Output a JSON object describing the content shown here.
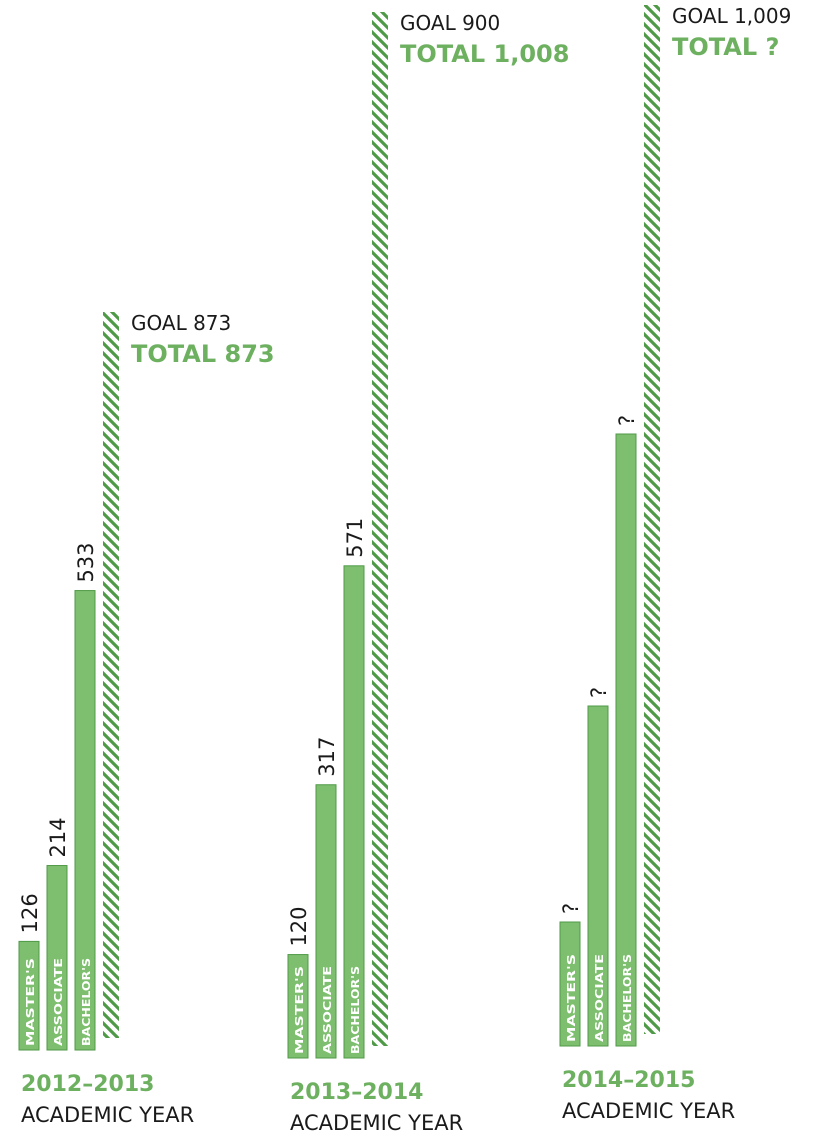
{
  "chart_data": {
    "type": "bar",
    "subtitle": "ACADEMIC YEAR",
    "bar_categories": [
      "MASTER'S",
      "ASSOCIATE",
      "BACHELOR'S"
    ],
    "groups": [
      {
        "year": "2012–2013",
        "values": [
          126,
          214,
          533
        ],
        "value_labels": [
          "126",
          "214",
          "533"
        ],
        "goal": 873,
        "goal_label": "GOAL 873",
        "total_label": "TOTAL 873"
      },
      {
        "year": "2013–2014",
        "values": [
          120,
          317,
          571
        ],
        "value_labels": [
          "120",
          "317",
          "571"
        ],
        "goal": 900,
        "goal_label": "GOAL 900",
        "total_label": "TOTAL 1,008"
      },
      {
        "year": "2014–2015",
        "values": [
          null,
          null,
          null
        ],
        "value_labels": [
          "?",
          "?",
          "?"
        ],
        "goal": 1009,
        "goal_label": "GOAL 1,009",
        "total_label": "TOTAL ?"
      }
    ],
    "colors": {
      "bar": "#7dbf6e",
      "bar_edge": "#4f9a47",
      "accent_text": "#6db060",
      "hatch": "#4f9a47",
      "text": "#1a1a1a",
      "bar_text": "#ffffff"
    }
  }
}
